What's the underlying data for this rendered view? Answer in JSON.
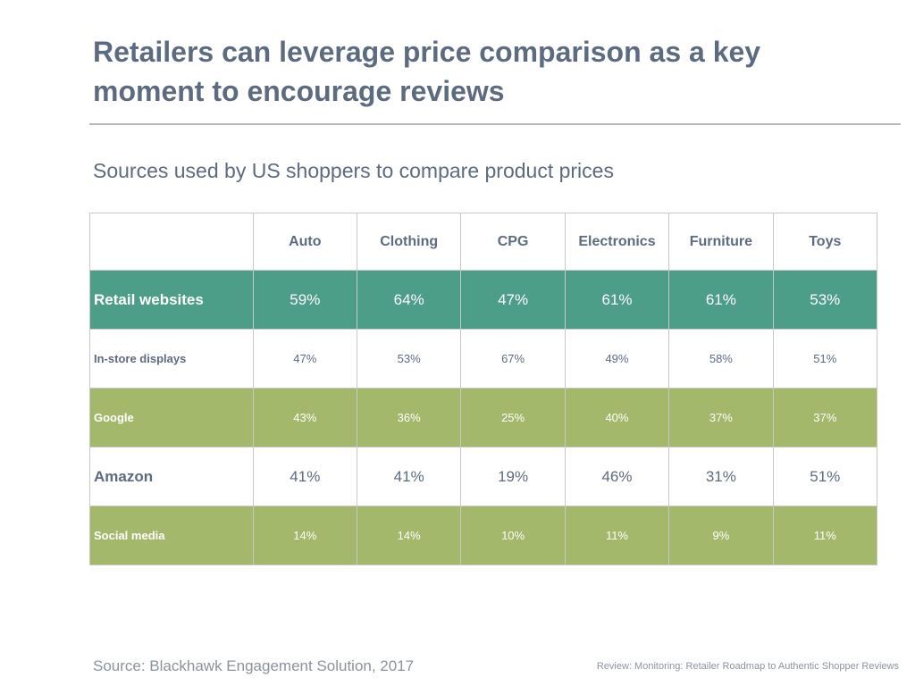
{
  "title": "Retailers can leverage price comparison as a key moment to encourage reviews",
  "subtitle": "Sources used by US shoppers to compare product prices",
  "table": {
    "columns": [
      "Auto",
      "Clothing",
      "CPG",
      "Electronics",
      "Furniture",
      "Toys"
    ],
    "rows": [
      {
        "label": "Retail websites",
        "style": "teal",
        "values": [
          "59%",
          "64%",
          "47%",
          "61%",
          "61%",
          "53%"
        ]
      },
      {
        "label": "In-store displays",
        "style": "plain-small",
        "values": [
          "47%",
          "53%",
          "67%",
          "49%",
          "58%",
          "51%"
        ]
      },
      {
        "label": "Google",
        "style": "olive",
        "values": [
          "43%",
          "36%",
          "25%",
          "40%",
          "37%",
          "37%"
        ]
      },
      {
        "label": "Amazon",
        "style": "plain-large",
        "values": [
          "41%",
          "41%",
          "19%",
          "46%",
          "31%",
          "51%"
        ]
      },
      {
        "label": "Social media",
        "style": "olive",
        "values": [
          "14%",
          "14%",
          "10%",
          "11%",
          "9%",
          "11%"
        ]
      }
    ]
  },
  "colors": {
    "teal": "#4c9e88",
    "olive": "#a3b86b",
    "text": "#5d6b80"
  },
  "source": "Source: Blackhawk Engagement Solution, 2017",
  "footer_ref": "Review: Monitoring: Retailer Roadmap to Authentic Shopper Reviews"
}
